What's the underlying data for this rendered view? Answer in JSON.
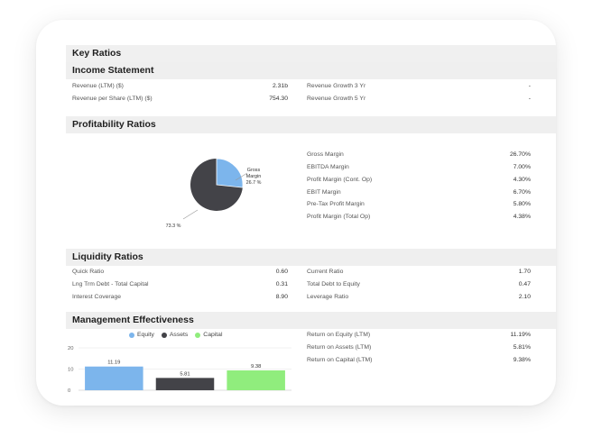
{
  "title": "Key Ratios",
  "sections": {
    "income": "Income Statement",
    "profitability": "Profitability Ratios",
    "liquidity": "Liquidity Ratios",
    "management": "Management Effectiveness"
  },
  "income": {
    "left": [
      {
        "label": "Revenue (LTM) ($)",
        "value": "2.31b"
      },
      {
        "label": "Revenue per Share (LTM) ($)",
        "value": "754.30"
      }
    ],
    "right": [
      {
        "label": "Revenue Growth 3 Yr",
        "value": "-"
      },
      {
        "label": "Revenue Growth 5 Yr",
        "value": "-"
      }
    ]
  },
  "profitability": {
    "rows": [
      {
        "label": "Gross Margin",
        "value": "26.70%"
      },
      {
        "label": "EBITDA Margin",
        "value": "7.00%"
      },
      {
        "label": "Profit Margin (Cont. Op)",
        "value": "4.30%"
      },
      {
        "label": "EBIT Margin",
        "value": "6.70%"
      },
      {
        "label": "Pre-Tax Profit Margin",
        "value": "5.80%"
      },
      {
        "label": "Profit Margin (Total Op)",
        "value": "4.38%"
      }
    ],
    "pie": {
      "slice_label_1": "Gross",
      "slice_label_2": "Margin",
      "slice_value_label": "26.7 %",
      "rest_label": "73.3 %",
      "slice_fraction": 0.267,
      "slice_color": "#7cb5ec",
      "rest_color": "#434348"
    }
  },
  "liquidity": {
    "left": [
      {
        "label": "Quick Ratio",
        "value": "0.60"
      },
      {
        "label": "Lng Trm Debt - Total Capital",
        "value": "0.31"
      },
      {
        "label": "Interest Coverage",
        "value": "8.90"
      }
    ],
    "right": [
      {
        "label": "Current Ratio",
        "value": "1.70"
      },
      {
        "label": "Total Debt to Equity",
        "value": "0.47"
      },
      {
        "label": "Leverage Ratio",
        "value": "2.10"
      }
    ]
  },
  "management": {
    "rows": [
      {
        "label": "Return on Equity (LTM)",
        "value": "11.19%"
      },
      {
        "label": "Return on Assets (LTM)",
        "value": "5.81%"
      },
      {
        "label": "Return on Capital (LTM)",
        "value": "9.38%"
      }
    ],
    "legend": [
      "Equity",
      "Assets",
      "Capital"
    ]
  },
  "chart_data": {
    "type": "bar",
    "categories": [
      "Equity",
      "Assets",
      "Capital"
    ],
    "values": [
      11.19,
      5.81,
      9.38
    ],
    "value_labels": [
      "11.19",
      "5.81",
      "9.38"
    ],
    "colors": [
      "#7cb5ec",
      "#434348",
      "#90ed7d"
    ],
    "yticks": [
      "20",
      "10",
      "0"
    ],
    "ylim": [
      0,
      20
    ]
  }
}
